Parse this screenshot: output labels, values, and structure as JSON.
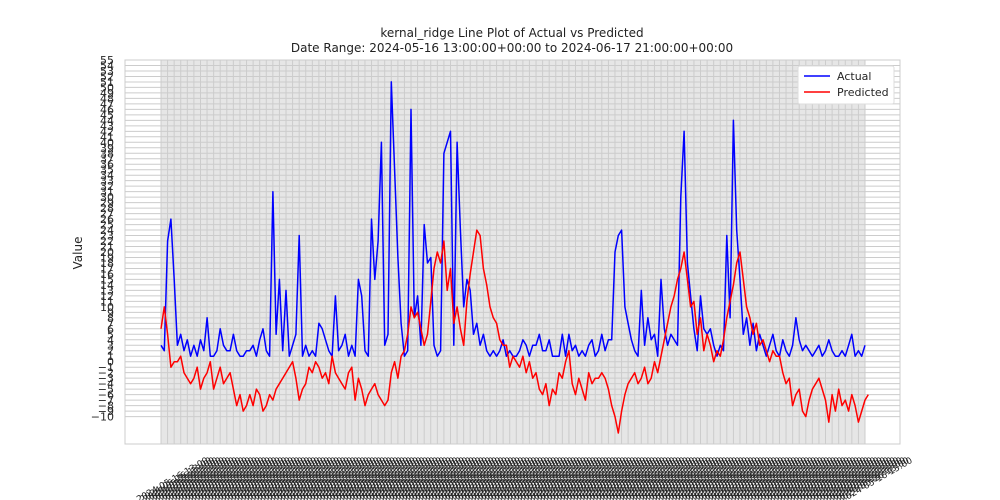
{
  "chart_data": {
    "type": "line",
    "title": "kernal_ridge Line Plot of Actual vs Predicted",
    "subtitle": "Date Range: 2024-05-16 13:00:00+00:00 to 2024-06-17 21:00:00+00:00",
    "xlabel": "",
    "ylabel": "Value",
    "ylim": [
      -15,
      55
    ],
    "yticks": [
      -10,
      -9,
      -8,
      -7,
      -6,
      -5,
      -4,
      -3,
      -2,
      -1,
      0,
      1,
      2,
      3,
      4,
      5,
      6,
      7,
      8,
      9,
      10,
      11,
      12,
      13,
      14,
      15,
      16,
      17,
      18,
      19,
      20,
      21,
      22,
      23,
      24,
      25,
      26,
      27,
      28,
      29,
      30,
      31,
      32,
      33,
      34,
      35,
      36,
      37,
      38,
      39,
      40,
      41,
      42,
      43,
      44,
      45,
      46,
      47,
      48,
      49,
      50,
      51,
      52,
      53,
      54,
      55
    ],
    "legend": "top-right",
    "grid": true,
    "x_start": "2024-05-16 13:00:00+00:00",
    "x_end": "2024-06-17 21:00:00+00:00",
    "series": [
      {
        "name": "Actual",
        "color": "#0000ff",
        "values": [
          3,
          2,
          22,
          26,
          15,
          3,
          5,
          2,
          4,
          1,
          3,
          1,
          4,
          2,
          8,
          1,
          1,
          2,
          6,
          3,
          2,
          2,
          5,
          2,
          1,
          1,
          2,
          2,
          3,
          1,
          4,
          6,
          2,
          1,
          31,
          5,
          15,
          2,
          13,
          1,
          3,
          5,
          23,
          1,
          3,
          1,
          2,
          1,
          7,
          6,
          4,
          2,
          1,
          12,
          2,
          3,
          5,
          1,
          3,
          1,
          15,
          12,
          2,
          1,
          26,
          15,
          22,
          40,
          3,
          5,
          51,
          35,
          19,
          7,
          1,
          2,
          46,
          8,
          12,
          3,
          25,
          18,
          19,
          3,
          1,
          2,
          38,
          40,
          42,
          3,
          40,
          24,
          10,
          15,
          13,
          5,
          7,
          3,
          5,
          2,
          1,
          2,
          1,
          2,
          4,
          1,
          2,
          1,
          1,
          2,
          4,
          3,
          1,
          3,
          3,
          5,
          2,
          2,
          4,
          1,
          1,
          1,
          5,
          1,
          5,
          2,
          3,
          1,
          2,
          1,
          3,
          4,
          1,
          2,
          5,
          2,
          4,
          4,
          20,
          23,
          24,
          10,
          7,
          4,
          2,
          1,
          13,
          3,
          8,
          4,
          5,
          1,
          15,
          6,
          3,
          5,
          4,
          3,
          30,
          42,
          18,
          12,
          6,
          2,
          12,
          6,
          5,
          6,
          3,
          1,
          3,
          2,
          23,
          8,
          44,
          24,
          15,
          5,
          8,
          3,
          7,
          2,
          5,
          3,
          1,
          3,
          5,
          2,
          1,
          4,
          2,
          1,
          3,
          8,
          4,
          2,
          3,
          2,
          1,
          2,
          3,
          1,
          2,
          4,
          2,
          1,
          1,
          2,
          1,
          3,
          5,
          1,
          2,
          1,
          3
        ]
      },
      {
        "name": "Predicted",
        "color": "#ff0000",
        "values": [
          6,
          10,
          5,
          -1,
          0,
          0,
          1,
          -2,
          -3,
          -4,
          -3,
          -1,
          -5,
          -3,
          -2,
          0,
          -5,
          -3,
          -1,
          -4,
          -3,
          -2,
          -5,
          -8,
          -6,
          -9,
          -8,
          -6,
          -8,
          -5,
          -6,
          -9,
          -8,
          -6,
          -7,
          -5,
          -4,
          -3,
          -2,
          -1,
          0,
          -3,
          -7,
          -5,
          -4,
          -1,
          -2,
          0,
          -1,
          -3,
          -2,
          -4,
          1,
          -2,
          -3,
          -4,
          -5,
          -2,
          -1,
          -7,
          -3,
          -5,
          -8,
          -6,
          -5,
          -4,
          -6,
          -7,
          -8,
          -7,
          -2,
          0,
          -3,
          1,
          2,
          5,
          10,
          8,
          9,
          6,
          3,
          5,
          11,
          17,
          20,
          18,
          22,
          13,
          17,
          7,
          10,
          6,
          3,
          11,
          16,
          20,
          24,
          23,
          17,
          14,
          10,
          8,
          7,
          4,
          3,
          3,
          -1,
          1,
          0,
          -1,
          1,
          -2,
          0,
          -3,
          -2,
          -5,
          -6,
          -4,
          -8,
          -5,
          -6,
          -2,
          -3,
          0,
          2,
          -4,
          -6,
          -3,
          -5,
          -7,
          -2,
          -4,
          -3,
          -3,
          -2,
          -3,
          -5,
          -8,
          -10,
          -13,
          -9,
          -6,
          -4,
          -3,
          -2,
          -4,
          -3,
          -1,
          -4,
          -3,
          0,
          -2,
          1,
          4,
          7,
          10,
          12,
          15,
          17,
          20,
          15,
          10,
          11,
          5,
          8,
          2,
          5,
          3,
          0,
          2,
          1,
          4,
          8,
          11,
          14,
          18,
          20,
          15,
          10,
          8,
          5,
          7,
          3,
          4,
          2,
          0,
          2,
          1,
          1,
          -2,
          -4,
          -3,
          -8,
          -6,
          -5,
          -9,
          -10,
          -7,
          -5,
          -4,
          -3,
          -5,
          -7,
          -11,
          -6,
          -9,
          -5,
          -8,
          -7,
          -9,
          -6,
          -8,
          -11,
          -9,
          -7,
          -6
        ]
      }
    ],
    "tick_color": "#cccccc"
  },
  "legend": {
    "actual": "Actual",
    "predicted": "Predicted"
  }
}
